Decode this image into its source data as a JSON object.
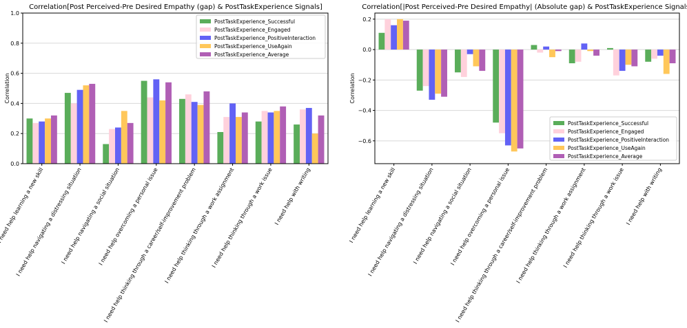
{
  "chart_data": [
    {
      "type": "bar",
      "title": "Correlation[Post Perceived-Pre Desired Empathy (gap) & PostTaskExperience Signals]",
      "xlabel": "",
      "ylabel": "Correlation",
      "ylim": [
        0,
        1.0
      ],
      "yticks": [
        "0.0",
        "0.2",
        "0.4",
        "0.6",
        "0.8",
        "1.0"
      ],
      "ytick_values": [
        0,
        0.2,
        0.4,
        0.6,
        0.8,
        1.0
      ],
      "grid": true,
      "legend_position": "top-right",
      "categories": [
        "I need help learning a new skill",
        "I need help navigating a distressing situation",
        "I need help navigating a social situation",
        "I need help overcoming a personal issue",
        "I need help thinking through a career/self-improvement problem",
        "I need help thinking through a work assignment",
        "I need help thinking through a work issue",
        "I need help with writing"
      ],
      "series": [
        {
          "name": "PostTaskExperience_Successful",
          "color": "#5aad5a",
          "values": [
            0.3,
            0.47,
            0.13,
            0.55,
            0.43,
            0.21,
            0.28,
            0.26
          ]
        },
        {
          "name": "PostTaskExperience_Engaged",
          "color": "#ffd1dc",
          "values": [
            0.27,
            0.4,
            0.23,
            0.44,
            0.46,
            0.31,
            0.35,
            0.36
          ]
        },
        {
          "name": "PostTaskExperience_PositiveInteraction",
          "color": "#6262f5",
          "values": [
            0.28,
            0.49,
            0.24,
            0.56,
            0.41,
            0.4,
            0.34,
            0.37
          ]
        },
        {
          "name": "PostTaskExperience_UseAgain",
          "color": "#ffc75a",
          "values": [
            0.3,
            0.52,
            0.35,
            0.42,
            0.39,
            0.31,
            0.35,
            0.2
          ]
        },
        {
          "name": "PostTaskExperience_Average",
          "color": "#b05fb5",
          "values": [
            0.32,
            0.53,
            0.27,
            0.54,
            0.48,
            0.34,
            0.38,
            0.32
          ]
        }
      ]
    },
    {
      "type": "bar",
      "title": "Correlation[|Post Perceived-Pre Desired Empathy| (Absolute gap) & PostTaskExperience Signals]",
      "xlabel": "",
      "ylabel": "Correlation",
      "ylim": [
        -0.75,
        0.24
      ],
      "yticks": [
        "0.2",
        "0.0",
        "−0.2",
        "−0.4",
        "−0.6"
      ],
      "ytick_values": [
        0.2,
        0.0,
        -0.2,
        -0.4,
        -0.6
      ],
      "grid": true,
      "legend_position": "bottom-right",
      "categories": [
        "I need help learning a new skill",
        "I need help navigating a distressing situation",
        "I need help navigating a social situation",
        "I need help overcoming a personal issue",
        "I need help thinking through a career/self-improvement problem",
        "I need help thinking through a work assignment",
        "I need help thinking through a work issue",
        "I need help with writing"
      ],
      "series": [
        {
          "name": "PostTaskExperience_Successful",
          "color": "#5aad5a",
          "values": [
            0.11,
            -0.27,
            -0.15,
            -0.48,
            0.03,
            -0.09,
            0.01,
            -0.08
          ]
        },
        {
          "name": "PostTaskExperience_Engaged",
          "color": "#ffd1dc",
          "values": [
            0.2,
            -0.24,
            -0.18,
            -0.55,
            -0.02,
            -0.08,
            -0.17,
            -0.06
          ]
        },
        {
          "name": "PostTaskExperience_PositiveInteraction",
          "color": "#6262f5",
          "values": [
            0.16,
            -0.33,
            -0.03,
            -0.63,
            0.02,
            0.04,
            -0.14,
            -0.04
          ]
        },
        {
          "name": "PostTaskExperience_UseAgain",
          "color": "#ffc75a",
          "values": [
            0.2,
            -0.29,
            -0.11,
            -0.67,
            -0.05,
            -0.01,
            -0.1,
            -0.16
          ]
        },
        {
          "name": "PostTaskExperience_Average",
          "color": "#b05fb5",
          "values": [
            0.19,
            -0.31,
            -0.14,
            -0.65,
            -0.01,
            -0.04,
            -0.11,
            -0.09
          ]
        }
      ]
    }
  ]
}
